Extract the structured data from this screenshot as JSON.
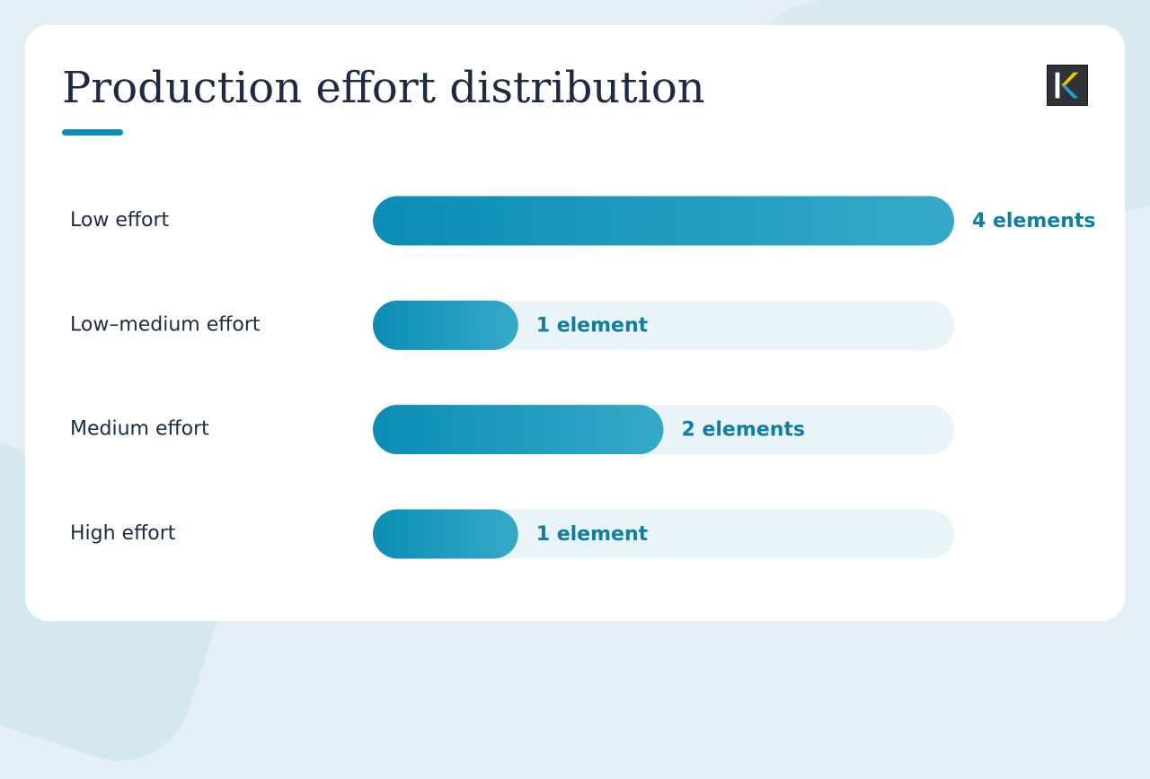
{
  "chart_data": {
    "type": "bar",
    "orientation": "horizontal",
    "title": "Production effort distribution",
    "categories": [
      "Low effort",
      "Low–medium effort",
      "Medium effort",
      "High effort"
    ],
    "values": [
      4,
      1,
      2,
      1
    ],
    "value_labels": [
      "4 elements",
      "1 element",
      "2 elements",
      "1 element"
    ],
    "xlim": [
      0,
      4
    ],
    "grid": false,
    "legend": "none"
  },
  "colors": {
    "bar_fill": "#0b8db5",
    "bar_fill_light": "#36a9c8",
    "track": "#e8f4f7",
    "value_text": "#0d7fa6",
    "label_text": "#1d2a43",
    "accent_underline": "#0b8db5"
  },
  "logo": {
    "icon": "k-logo-icon"
  }
}
